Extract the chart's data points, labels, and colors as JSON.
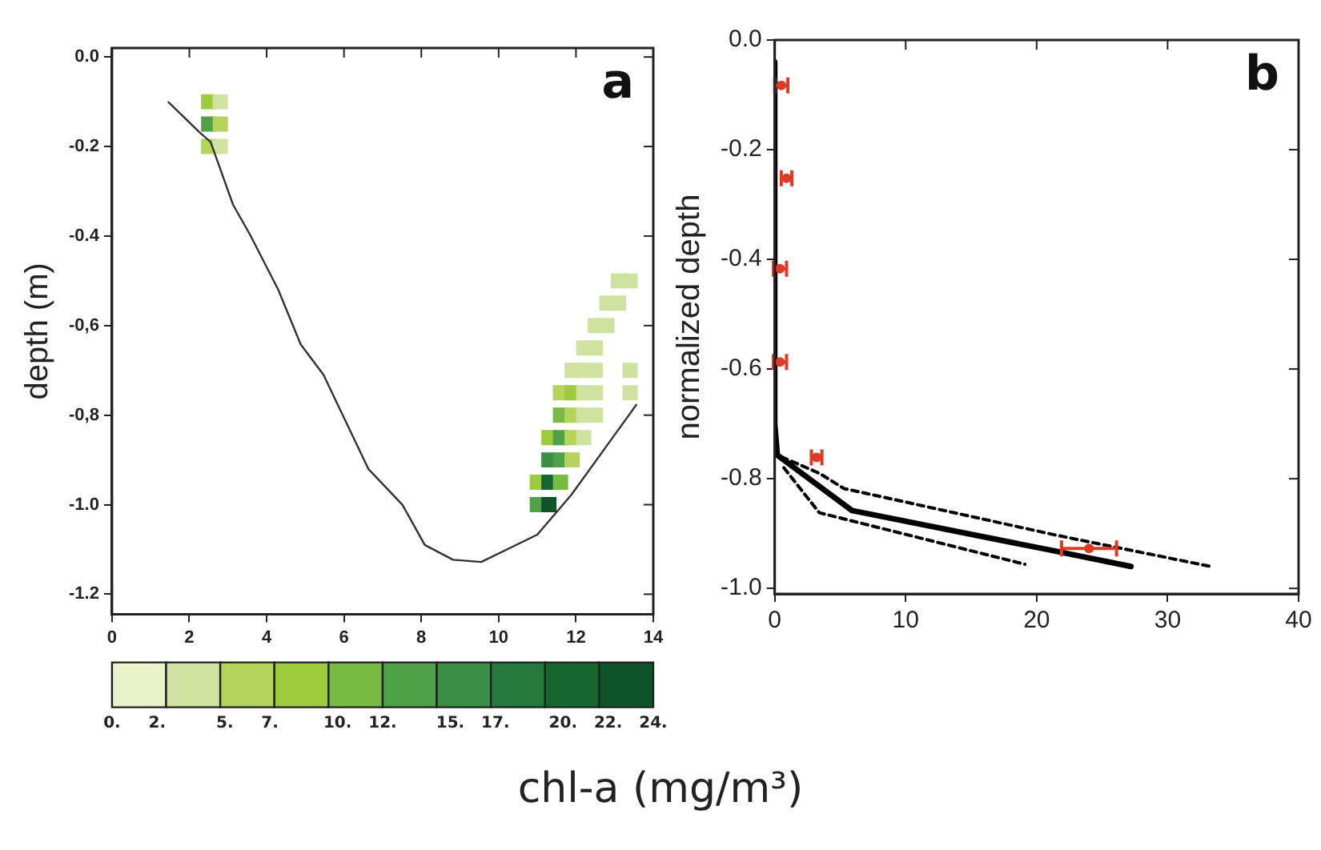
{
  "chart_data": [
    {
      "type": "scatter",
      "ylabel": "depth (m)",
      "annotations": [
        "a"
      ],
      "xlim": [
        0,
        14
      ],
      "xticks": [
        0,
        2,
        4,
        6,
        8,
        10,
        12,
        14
      ],
      "ylim": [
        -1.245,
        0.02
      ],
      "yticks": [
        {
          "value": 0,
          "label": "0.0"
        },
        {
          "value": -0.2,
          "label": "-0.2"
        },
        {
          "value": -0.4,
          "label": "-0.4"
        },
        {
          "value": -0.6,
          "label": "-0,6"
        },
        {
          "value": -0.8,
          "label": "-0,8"
        },
        {
          "value": -1.0,
          "label": "-1.0"
        },
        {
          "value": -1.2,
          "label": "-1.2"
        }
      ],
      "clim": [
        0,
        24
      ],
      "cticks": [
        {
          "value": 0,
          "label": "0."
        },
        {
          "value": 2,
          "label": "2."
        },
        {
          "value": 5,
          "label": "5."
        },
        {
          "value": 7,
          "label": "7."
        },
        {
          "value": 10,
          "label": "10."
        },
        {
          "value": 12,
          "label": "12."
        },
        {
          "value": 15,
          "label": "15."
        },
        {
          "value": 17,
          "label": "17."
        },
        {
          "value": 20,
          "label": "20."
        },
        {
          "value": 22,
          "label": "22."
        },
        {
          "value": 24,
          "label": "24."
        }
      ],
      "grid": false,
      "legend": false,
      "series": [
        {
          "type": "line",
          "color": "#333333",
          "marker": "none",
          "x": [
            1.46,
            2.26,
            2.55,
            3.13,
            3.57,
            4.3,
            4.88,
            5.47,
            6.63,
            7.51,
            8.09,
            8.82,
            9.55,
            11.0,
            11.88,
            13.56
          ],
          "values": [
            -0.101,
            -0.168,
            -0.19,
            -0.33,
            -0.397,
            -0.52,
            -0.642,
            -0.71,
            -0.92,
            -1.0,
            -1.09,
            -1.123,
            -1.128,
            -1.067,
            -0.978,
            -0.777
          ]
        },
        {
          "marker": "square",
          "x": [
            2.5,
            2.8,
            2.5,
            2.8,
            2.5,
            2.8,
            11.0,
            11.3,
            11.0,
            11.3,
            11.6,
            11.3,
            11.6,
            11.9,
            11.3,
            11.6,
            11.9,
            12.2,
            11.6,
            11.9,
            12.2,
            12.5,
            11.6,
            11.9,
            12.2,
            12.5,
            13.4,
            11.9,
            12.2,
            12.5,
            13.4,
            12.2,
            12.5,
            12.5,
            12.8,
            12.8,
            13.1,
            13.1,
            13.4
          ],
          "values": [
            -0.1,
            -0.1,
            -0.15,
            -0.15,
            -0.2,
            -0.2,
            -1.0,
            -1.0,
            -0.95,
            -0.95,
            -0.95,
            -0.9,
            -0.9,
            -0.9,
            -0.85,
            -0.85,
            -0.85,
            -0.85,
            -0.8,
            -0.8,
            -0.8,
            -0.8,
            -0.75,
            -0.75,
            -0.75,
            -0.75,
            -0.75,
            -0.7,
            -0.7,
            -0.7,
            -0.7,
            -0.65,
            -0.65,
            -0.6,
            -0.6,
            -0.55,
            -0.55,
            -0.5,
            -0.5
          ],
          "cvalues": [
            8.4,
            3.6,
            13.2,
            6,
            6,
            3.6,
            13.2,
            22.8,
            8.4,
            20.4,
            10.8,
            15.6,
            13.2,
            6,
            8.4,
            13.2,
            6,
            3.6,
            10.8,
            6,
            3.6,
            3.6,
            6,
            8.4,
            3.6,
            3.6,
            3.6,
            3.6,
            3.6,
            3.6,
            3.6,
            3.6,
            3.6,
            3.6,
            3.6,
            3.6,
            3.6,
            3.6,
            3.6
          ],
          "colors": [
            "#9ccb3c",
            "#cfe2a0",
            "#4fa148",
            "#b4d45a",
            "#b4d45a",
            "#cfe2a0",
            "#4fa148",
            "#0f5426",
            "#9ccb3c",
            "#16672f",
            "#77bb44",
            "#3a8f45",
            "#4fa148",
            "#b4d45a",
            "#9ccb3c",
            "#4fa148",
            "#b4d45a",
            "#cfe2a0",
            "#77bb44",
            "#b4d45a",
            "#cfe2a0",
            "#cfe2a0",
            "#b4d45a",
            "#9ccb3c",
            "#cfe2a0",
            "#cfe2a0",
            "#cfe2a0",
            "#cfe2a0",
            "#cfe2a0",
            "#cfe2a0",
            "#cfe2a0",
            "#cfe2a0",
            "#cfe2a0",
            "#cfe2a0",
            "#cfe2a0",
            "#cfe2a0",
            "#cfe2a0",
            "#cfe2a0",
            "#cfe2a0"
          ]
        }
      ]
    },
    {
      "type": "line",
      "ylabel": "normalized depth",
      "xlabel": "chl-a (mg/m³)",
      "annotations": [
        "b"
      ],
      "xlim": [
        0,
        40
      ],
      "xticks": [
        0,
        10,
        20,
        30,
        40
      ],
      "ylim": [
        -1.01,
        0
      ],
      "yticks": [
        {
          "value": 0,
          "label": "0.0"
        },
        {
          "value": -0.2,
          "label": "-0.2"
        },
        {
          "value": -0.4,
          "label": "-0.4"
        },
        {
          "value": -0.6,
          "label": "-0.6"
        },
        {
          "value": -0.8,
          "label": "-0.8"
        },
        {
          "value": -1.0,
          "label": "-1.0"
        }
      ],
      "grid": false,
      "legend": false,
      "series": [
        {
          "color": "#000000",
          "line_style": "solid",
          "marker": "none",
          "x": [
            0,
            0,
            0.2,
            5.9,
            21,
            27.2
          ],
          "values": [
            -0.04,
            -0.7,
            -0.757,
            -0.858,
            -0.93,
            -0.96
          ]
        },
        {
          "color": "#000000",
          "line_style": "dashed",
          "marker": "none",
          "x": [
            0.5,
            3.4,
            5.3,
            21.5,
            33.5
          ],
          "values": [
            -0.76,
            -0.79,
            -0.818,
            -0.903,
            -0.961
          ]
        },
        {
          "color": "#000000",
          "line_style": "dashed",
          "marker": "none",
          "x": [
            0.7,
            3.4,
            19.1
          ],
          "values": [
            -0.78,
            -0.862,
            -0.956
          ]
        },
        {
          "type": "scatter",
          "color": "#e03a25",
          "marker": "circle",
          "x": [
            0.5,
            0.9,
            0.4,
            0.4,
            3.2,
            24
          ],
          "values": [
            -0.083,
            -0.252,
            -0.417,
            -0.587,
            -0.761,
            -0.927
          ],
          "xerrors": [
            0.5,
            0.4,
            0.5,
            0.5,
            0.4,
            2.1
          ]
        }
      ]
    }
  ]
}
